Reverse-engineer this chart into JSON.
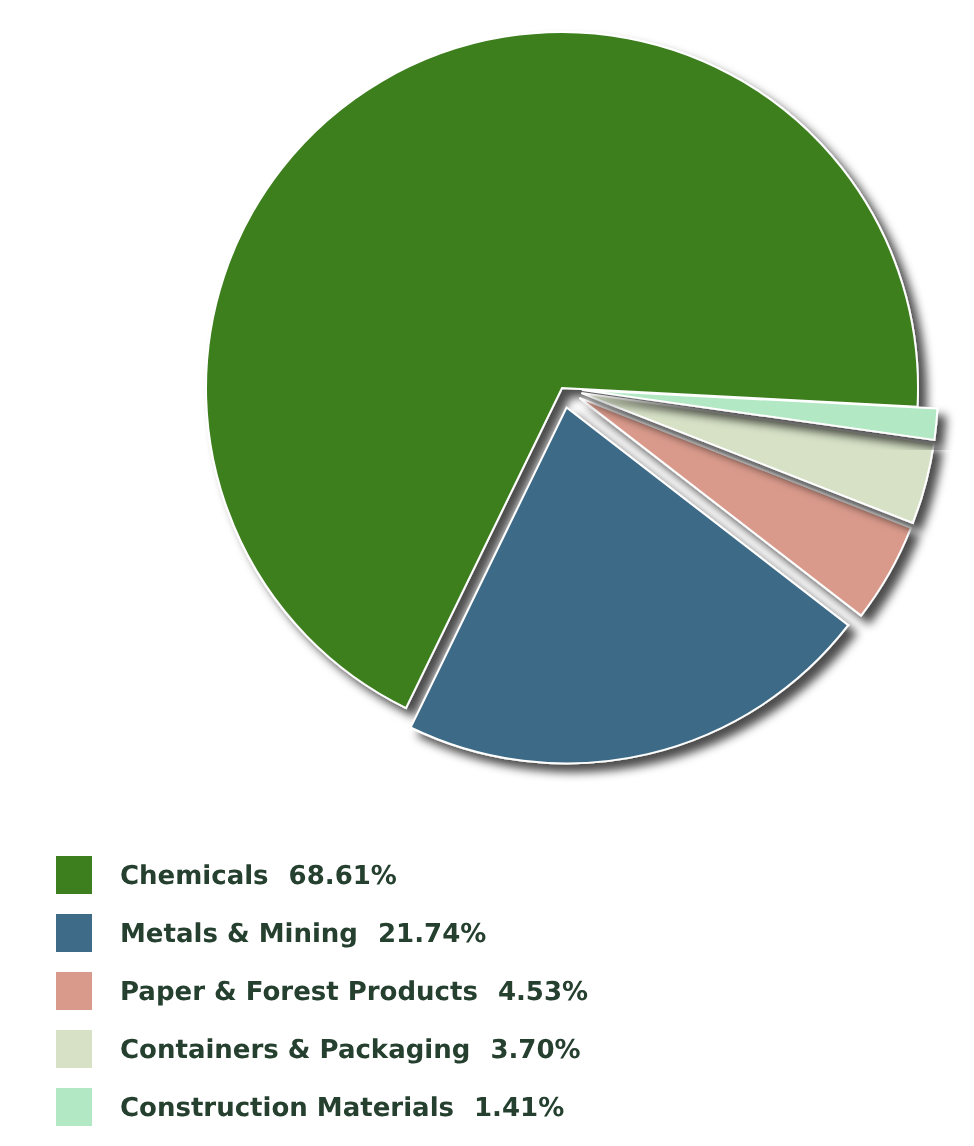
{
  "chart_data": {
    "type": "pie",
    "categories": [
      "Chemicals",
      "Metals & Mining",
      "Paper & Forest Products",
      "Containers & Packaging",
      "Construction Materials"
    ],
    "values": [
      68.61,
      21.74,
      4.53,
      3.7,
      1.41
    ],
    "value_labels": [
      "68.61%",
      "21.74%",
      "4.53%",
      "3.70%",
      "1.41%"
    ],
    "colors": [
      "#3d7f1e",
      "#3e6b87",
      "#d99a8b",
      "#d6e1c6",
      "#b2e8c4"
    ],
    "legend": "bottom"
  }
}
